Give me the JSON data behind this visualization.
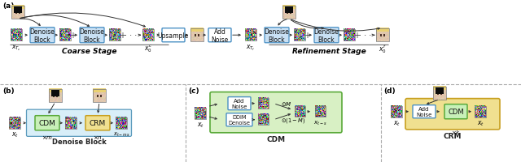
{
  "fig_width": 6.4,
  "fig_height": 2.01,
  "blue_box_fc": "#c8e0f4",
  "blue_box_ec": "#4a90c4",
  "green_box_fc": "#d4edc4",
  "green_box_ec": "#5aaa3a",
  "yellow_box_fc": "#f0e090",
  "yellow_box_ec": "#c8a020",
  "light_blue_bg_fc": "#d8eef8",
  "light_blue_bg_ec": "#5a9abc",
  "white_box_fc": "#ffffff",
  "arrow_color": "#333333",
  "divider_color": "#aaaaaa",
  "label_a": "(a)",
  "label_b": "(b)",
  "label_c": "(c)",
  "label_d": "(d)",
  "coarse_stage": "Coarse Stage",
  "refinement_stage": "Refinement Stage",
  "denoise_block": "Denoise\nBlock",
  "upsample": "Upsample",
  "add_noise": "Add\nNoise",
  "cdm": "CDM",
  "crm": "CRM",
  "ddim_denoise": "DDIM\nDenoise",
  "denoise_block_label": "Denoise Block"
}
